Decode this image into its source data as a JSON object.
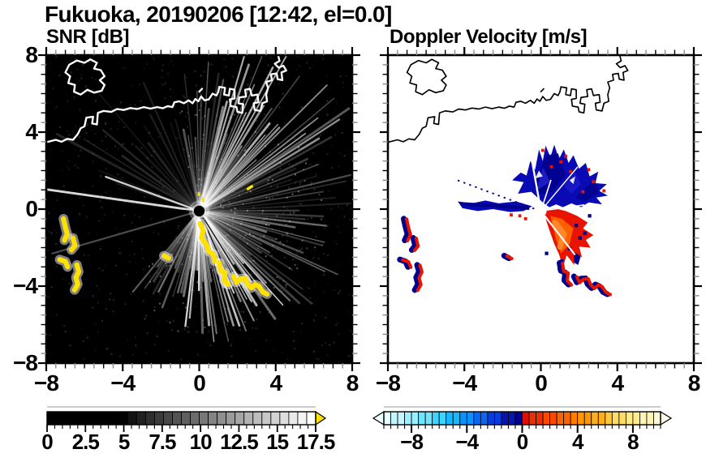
{
  "header": {
    "title": "Fukuoka, 20190206 [12:42, el=0.0]"
  },
  "panels": [
    {
      "title": "SNR [dB]",
      "x_tick_labels": [
        "−8",
        "−4",
        "0",
        "4",
        "8"
      ],
      "y_tick_labels": [
        "8",
        "4",
        "0",
        "−4",
        "−8"
      ],
      "colorbar_tick_labels": [
        "0",
        "2.5",
        "5",
        "7.5",
        "10",
        "12.5",
        "15",
        "17.5"
      ]
    },
    {
      "title": "Doppler Velocity [m/s]",
      "x_tick_labels": [
        "−8",
        "−4",
        "0",
        "4",
        "8"
      ],
      "colorbar_tick_labels": [
        "−8",
        "−4",
        "0",
        "4",
        "8"
      ]
    }
  ],
  "colors": {
    "snr_background": "#000000",
    "snr_coastline": "#ffffff",
    "snr_over_arrow": "#ffe100",
    "velocity_background": "#ffffff",
    "velocity_coastline": "#000000",
    "velocity_negative": "#00008b",
    "velocity_positive": "#e81400",
    "velocity_core": "#ff6400",
    "velocity_under_arrow": "#edffff",
    "velocity_over_arrow": "#fffde8"
  },
  "chart_data": [
    {
      "type": "heatmap",
      "title": "SNR [dB]",
      "units": "dB",
      "x_range": [
        -8,
        8
      ],
      "y_range": [
        -8,
        8
      ],
      "x_ticks": [
        -8,
        -4,
        0,
        4,
        8
      ],
      "y_ticks": [
        -8,
        -4,
        0,
        4,
        8
      ],
      "minor_tick_step": 0.5,
      "grid": false,
      "colorbar": {
        "min": 0,
        "max": 18,
        "ticks": [
          0,
          2.5,
          5,
          7.5,
          10,
          12.5,
          15,
          17.5
        ],
        "colormap": "black-to-white grayscale",
        "over_color": "yellow",
        "orientation": "horizontal"
      },
      "features": [
        "Doppler lidar PPI scan centered at origin (radar at x=0, y=-0.1 km approx)",
        "gray radial SNR spokes strongest toward NE, E, SE and S of the radar",
        "two bright narrow beams toward W and WNW",
        "dark blocked sector toward SW",
        "saturated yellow (> 18 dB) hard-target clutter arc from (0,-1) to (3.5,-4.5)",
        "yellow clutter patches near western islands at x -7.3..-6.3, y -0.5..-4.2",
        "white Fukuoka bay coastline across the upper half with jagged harbor piers at upper right",
        "island outline near (-6, 7)"
      ]
    },
    {
      "type": "heatmap",
      "title": "Doppler Velocity [m/s]",
      "units": "m/s",
      "x_range": [
        -8,
        8
      ],
      "y_range": [
        -8,
        8
      ],
      "x_ticks": [
        -8,
        -4,
        0,
        4,
        8
      ],
      "y_ticks": [
        -8,
        -4,
        0,
        4,
        8
      ],
      "minor_tick_step": 0.5,
      "grid": false,
      "colorbar": {
        "min": -10,
        "max": 10,
        "ticks": [
          -8,
          -4,
          0,
          4,
          8
        ],
        "colormap": "pale-cyan to navy for negative, red to pale-yellow for positive",
        "under_color": "pale cyan",
        "over_color": "pale yellow",
        "orientation": "horizontal"
      },
      "features": [
        "white background, black coastline identical to SNR panel",
        "blue/navy negative-velocity fan north and northeast of radar (x -2..3.4, y 0..3.3)",
        "blue streak due west of radar (x -4.4..-0.5 near y 0)",
        "red/orange positive-velocity wedge southeast of radar (x 0..2.7, y 0..-3)",
        "dotted navy ray toward WNW",
        "paired navy/red ground-clutter patches near western islands and along SE arc",
        "white dot at radar origin"
      ]
    }
  ]
}
